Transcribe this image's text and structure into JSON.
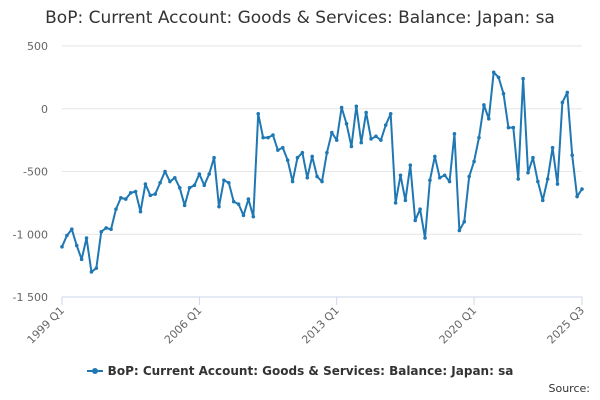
{
  "title": "BoP: Current Account: Goods & Services: Balance: Japan: sa",
  "legend_label": "BoP: Current Account: Goods & Services: Balance: Japan: sa",
  "credits": "Source:",
  "colors": {
    "series": "#1f78b4",
    "grid": "#e6e6e6",
    "axis": "#ccd6eb"
  },
  "chart_data": {
    "type": "line",
    "title": "BoP: Current Account: Goods & Services: Balance: Japan: sa",
    "xlabel": "",
    "ylabel": "",
    "grid": "horizontal",
    "legend_position": "bottom-center",
    "ylim": [
      -1500,
      500
    ],
    "y_ticks": [
      500,
      0,
      -500,
      -1000,
      -1500
    ],
    "y_tick_labels": [
      "500",
      "0",
      "-500",
      "-1 000",
      "-1 500"
    ],
    "x_start": "1999 Q1",
    "x_end": "2025 Q3",
    "x_ticks": [
      "1999 Q1",
      "2006 Q1",
      "2013 Q1",
      "2020 Q1",
      "2025 Q3"
    ],
    "series": [
      {
        "name": "BoP: Current Account: Goods & Services: Balance: Japan: sa",
        "values": [
          -1100,
          -1010,
          -960,
          -1090,
          -1200,
          -1030,
          -1300,
          -1270,
          -980,
          -950,
          -960,
          -800,
          -710,
          -720,
          -670,
          -660,
          -820,
          -600,
          -690,
          -680,
          -590,
          -500,
          -580,
          -550,
          -630,
          -770,
          -630,
          -610,
          -520,
          -610,
          -520,
          -390,
          -780,
          -570,
          -590,
          -740,
          -760,
          -850,
          -720,
          -860,
          -40,
          -230,
          -230,
          -210,
          -330,
          -310,
          -410,
          -580,
          -390,
          -350,
          -550,
          -380,
          -540,
          -580,
          -350,
          -190,
          -250,
          10,
          -120,
          -300,
          20,
          -270,
          -30,
          -240,
          -220,
          -250,
          -130,
          -40,
          -750,
          -530,
          -730,
          -450,
          -890,
          -800,
          -1030,
          -570,
          -380,
          -550,
          -530,
          -580,
          -200,
          -970,
          -900,
          -540,
          -420,
          -230,
          30,
          -80,
          290,
          250,
          120,
          -150,
          -150,
          -560,
          240,
          -510,
          -390,
          -580,
          -730,
          -560,
          -310,
          -600,
          50,
          130,
          -370,
          -700,
          -640
        ]
      }
    ]
  }
}
